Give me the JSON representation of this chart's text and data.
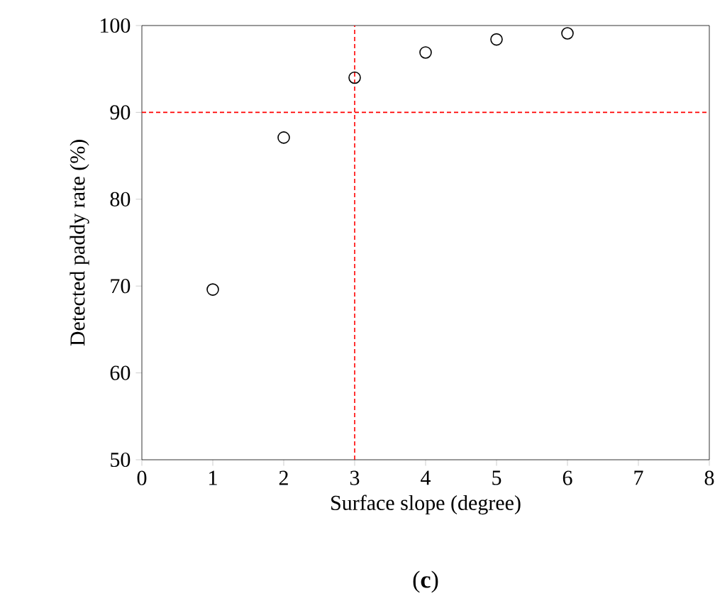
{
  "chart_data": {
    "type": "scatter",
    "xlabel": "Surface slope (degree)",
    "ylabel": "Detected paddy rate (%)",
    "x": [
      1,
      2,
      3,
      4,
      5,
      6
    ],
    "series": [
      {
        "color": "#000000",
        "values": [
          69.6,
          87.1,
          94.0,
          96.9,
          98.4,
          99.1
        ]
      }
    ],
    "marker": "circle",
    "xlim": [
      0,
      8
    ],
    "xticks": [
      0,
      1,
      2,
      3,
      4,
      5,
      6,
      7,
      8
    ],
    "ylim": [
      50,
      100
    ],
    "yticks": [
      50,
      60,
      70,
      80,
      90,
      100
    ],
    "ref_lines": [
      {
        "axis": "y",
        "value": 90,
        "color": "#ff0000",
        "line_style": "dashed"
      },
      {
        "axis": "x",
        "value": 3,
        "color": "#ff0000",
        "line_style": "dashed"
      }
    ],
    "annotations": [
      "(**c**)"
    ]
  }
}
